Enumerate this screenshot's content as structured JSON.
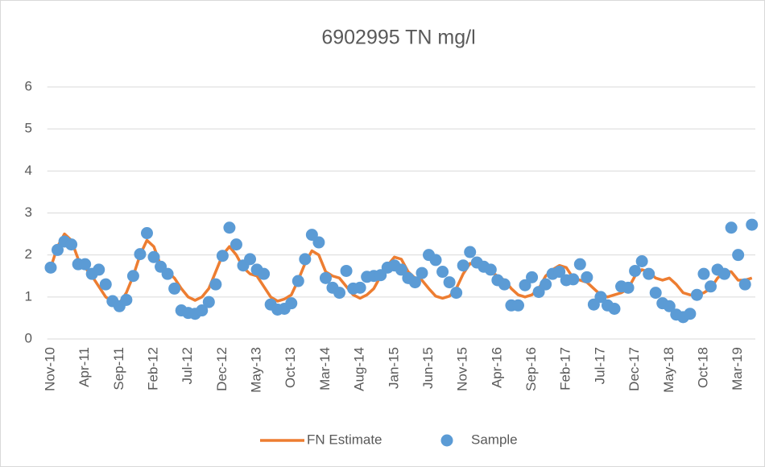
{
  "chart_data": {
    "type": "line",
    "title": "6902995 TN mg/l",
    "categories": [
      "Nov-10",
      null,
      null,
      null,
      null,
      "Apr-11",
      null,
      null,
      null,
      null,
      "Sep-11",
      null,
      null,
      null,
      null,
      "Feb-12",
      null,
      null,
      null,
      null,
      "Jul-12",
      null,
      null,
      null,
      null,
      "Dec-12",
      null,
      null,
      null,
      null,
      "May-13",
      null,
      null,
      null,
      null,
      "Oct-13",
      null,
      null,
      null,
      null,
      "Mar-14",
      null,
      null,
      null,
      null,
      "Aug-14",
      null,
      null,
      null,
      null,
      "Jan-15",
      null,
      null,
      null,
      null,
      "Jun-15",
      null,
      null,
      null,
      null,
      "Nov-15",
      null,
      null,
      null,
      null,
      "Apr-16",
      null,
      null,
      null,
      null,
      "Sep-16",
      null,
      null,
      null,
      null,
      "Feb-17",
      null,
      null,
      null,
      null,
      "Jul-17",
      null,
      null,
      null,
      null,
      "Dec-17",
      null,
      null,
      null,
      null,
      "May-18",
      null,
      null,
      null,
      null,
      "Oct-18",
      null,
      null,
      null,
      null,
      "Mar-19",
      null,
      null
    ],
    "series": [
      {
        "name": "FN Estimate",
        "type": "line",
        "color": "#ed7d31",
        "values": [
          1.7,
          2.2,
          2.5,
          2.35,
          1.9,
          1.7,
          1.5,
          1.25,
          1.0,
          0.9,
          0.85,
          1.1,
          1.5,
          2.0,
          2.35,
          2.2,
          1.75,
          1.6,
          1.45,
          1.2,
          1.0,
          0.92,
          1.0,
          1.2,
          1.6,
          2.0,
          2.2,
          2.0,
          1.7,
          1.55,
          1.5,
          1.25,
          1.0,
          0.9,
          0.95,
          1.05,
          1.4,
          1.8,
          2.1,
          2.0,
          1.6,
          1.5,
          1.45,
          1.25,
          1.05,
          0.97,
          1.05,
          1.2,
          1.5,
          1.75,
          1.95,
          1.9,
          1.6,
          1.45,
          1.4,
          1.2,
          1.02,
          0.97,
          1.02,
          1.2,
          1.55,
          1.8,
          1.75,
          1.7,
          1.6,
          1.5,
          1.4,
          1.2,
          1.05,
          1.0,
          1.05,
          1.2,
          1.5,
          1.65,
          1.75,
          1.7,
          1.45,
          1.4,
          1.35,
          1.2,
          1.05,
          1.0,
          1.05,
          1.1,
          1.2,
          1.5,
          1.65,
          1.6,
          1.45,
          1.4,
          1.45,
          1.3,
          1.1,
          1.05,
          1.05,
          1.1,
          1.2,
          1.45,
          1.6,
          1.6,
          1.4,
          1.4,
          1.45
        ]
      },
      {
        "name": "Sample",
        "type": "scatter",
        "color": "#5b9bd5",
        "values": [
          1.7,
          2.12,
          2.32,
          2.25,
          1.78,
          1.78,
          1.55,
          1.65,
          1.3,
          0.9,
          0.78,
          0.93,
          1.5,
          2.02,
          2.52,
          1.95,
          1.72,
          1.55,
          1.2,
          0.68,
          0.62,
          0.6,
          0.68,
          0.88,
          1.3,
          1.98,
          2.65,
          2.25,
          1.75,
          1.9,
          1.65,
          1.55,
          0.82,
          0.7,
          0.72,
          0.85,
          1.38,
          1.9,
          2.48,
          2.3,
          1.45,
          1.22,
          1.1,
          1.62,
          1.2,
          1.22,
          1.48,
          1.5,
          1.52,
          1.7,
          1.75,
          1.65,
          1.45,
          1.35,
          1.57,
          2.0,
          1.88,
          1.6,
          1.35,
          1.1,
          1.75,
          2.07,
          1.82,
          1.72,
          1.65,
          1.4,
          1.3,
          0.8,
          0.8,
          1.28,
          1.47,
          1.12,
          1.3,
          1.55,
          1.6,
          1.4,
          1.42,
          1.78,
          1.47,
          0.82,
          1.0,
          0.8,
          0.72,
          1.25,
          1.22,
          1.62,
          1.85,
          1.55,
          1.1,
          0.85,
          0.78,
          0.58,
          0.52,
          0.6,
          1.05,
          1.55,
          1.25,
          1.65,
          1.55,
          2.65,
          2.0,
          1.3,
          2.72
        ]
      }
    ],
    "ylim": [
      0,
      6
    ],
    "yticks": [
      0,
      1,
      2,
      3,
      4,
      5,
      6
    ],
    "grid": true,
    "legend": "bottom"
  }
}
